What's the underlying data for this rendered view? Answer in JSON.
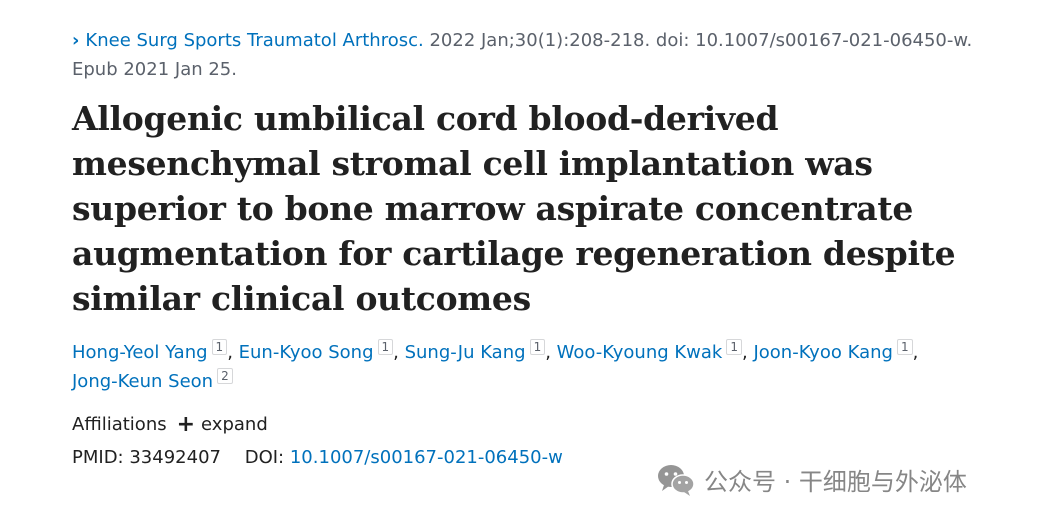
{
  "citation": {
    "chevron": "›",
    "journal": "Knee Surg Sports Traumatol Arthrosc.",
    "details": " 2022 Jan;30(1):208-218. doi: 10.1007/s00167-021-06450-w. Epub 2021 Jan 25."
  },
  "title": "Allogenic umbilical cord blood-derived mesenchymal stromal cell implantation was superior to bone marrow aspirate concentrate augmentation for cartilage regeneration despite similar clinical outcomes",
  "authors": [
    {
      "name": "Hong-Yeol Yang",
      "aff": "1"
    },
    {
      "name": "Eun-Kyoo Song",
      "aff": "1"
    },
    {
      "name": "Sung-Ju Kang",
      "aff": "1"
    },
    {
      "name": "Woo-Kyoung Kwak",
      "aff": "1"
    },
    {
      "name": "Joon-Kyoo Kang",
      "aff": "1"
    },
    {
      "name": "Jong-Keun Seon",
      "aff": "2"
    }
  ],
  "affiliations": {
    "label": "Affiliations",
    "plus": "+",
    "expand": "expand"
  },
  "ids": {
    "pmid_label": "PMID:",
    "pmid": "33492407",
    "doi_label": "DOI:",
    "doi": "10.1007/s00167-021-06450-w"
  },
  "watermark": {
    "text": "公众号 · 干细胞与外泌体",
    "icon": "wechat-icon"
  }
}
